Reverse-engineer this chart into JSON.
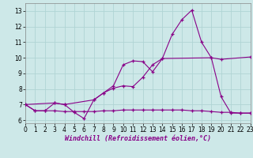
{
  "xlabel": "Windchill (Refroidissement éolien,°C)",
  "bg_color": "#cde8e8",
  "grid_color": "#b0d4d4",
  "line_color": "#880088",
  "x_line1": [
    0,
    1,
    2,
    3,
    4,
    5,
    6,
    7,
    8,
    9,
    10,
    11,
    12,
    13,
    14,
    15,
    16,
    17,
    18,
    19,
    20,
    21,
    22,
    23
  ],
  "y_line1": [
    7.0,
    6.6,
    6.6,
    7.1,
    7.0,
    6.5,
    6.1,
    7.3,
    7.75,
    8.2,
    9.55,
    9.8,
    9.75,
    9.1,
    9.95,
    11.5,
    12.45,
    13.05,
    11.0,
    10.0,
    7.5,
    6.45,
    6.45,
    6.45
  ],
  "x_line2": [
    0,
    3,
    4,
    7,
    8,
    9,
    10,
    11,
    12,
    13,
    14,
    19,
    20,
    23
  ],
  "y_line2": [
    7.0,
    7.1,
    7.0,
    7.3,
    7.75,
    8.05,
    8.2,
    8.15,
    8.75,
    9.55,
    9.95,
    10.0,
    9.9,
    10.05
  ],
  "x_line3": [
    0,
    1,
    2,
    3,
    4,
    5,
    6,
    7,
    8,
    9,
    10,
    11,
    12,
    13,
    14,
    15,
    16,
    17,
    18,
    19,
    20,
    21,
    22,
    23
  ],
  "y_line3": [
    7.0,
    6.6,
    6.6,
    6.6,
    6.55,
    6.55,
    6.55,
    6.55,
    6.6,
    6.6,
    6.65,
    6.65,
    6.65,
    6.65,
    6.65,
    6.65,
    6.65,
    6.6,
    6.6,
    6.55,
    6.5,
    6.5,
    6.45,
    6.45
  ],
  "ylim": [
    5.8,
    13.5
  ],
  "xlim": [
    0,
    23
  ],
  "yticks": [
    6,
    7,
    8,
    9,
    10,
    11,
    12,
    13
  ],
  "xticks": [
    0,
    1,
    2,
    3,
    4,
    5,
    6,
    7,
    8,
    9,
    10,
    11,
    12,
    13,
    14,
    15,
    16,
    17,
    18,
    19,
    20,
    21,
    22,
    23
  ],
  "tick_fontsize": 5.5,
  "label_fontsize": 6.0
}
